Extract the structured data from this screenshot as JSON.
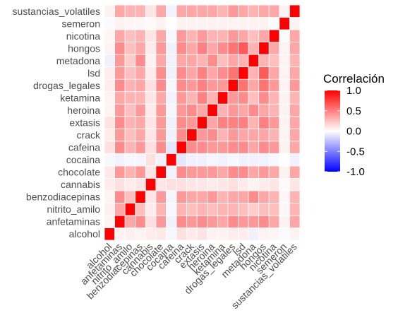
{
  "chart_data": {
    "type": "heatmap",
    "title": "",
    "xlabel": "",
    "ylabel": "",
    "variables": [
      "alcohol",
      "anfetaminas",
      "nitrito_amilo",
      "benzodiacepinas",
      "cannabis",
      "chocolate",
      "cocaina",
      "cafeina",
      "crack",
      "extasis",
      "heroina",
      "ketamina",
      "drogas_legales",
      "lsd",
      "metadona",
      "hongos",
      "nicotina",
      "semeron",
      "sustancias_volatiles"
    ],
    "matrix": [
      [
        1.0,
        0.05,
        0.06,
        0.05,
        0.08,
        0.09,
        -0.03,
        0.12,
        0.08,
        0.11,
        0.05,
        0.05,
        0.07,
        0.07,
        -0.06,
        0.05,
        0.04,
        -0.02,
        0.05
      ],
      [
        0.05,
        1.0,
        0.35,
        0.45,
        0.12,
        0.4,
        -0.05,
        0.45,
        0.4,
        0.45,
        0.4,
        0.35,
        0.45,
        0.4,
        0.4,
        0.45,
        0.35,
        0.05,
        0.35
      ],
      [
        0.06,
        0.35,
        1.0,
        0.25,
        0.08,
        0.3,
        -0.03,
        0.3,
        0.25,
        0.3,
        0.25,
        0.3,
        0.3,
        0.25,
        0.2,
        0.25,
        0.25,
        0.03,
        0.3
      ],
      [
        0.05,
        0.45,
        0.25,
        1.0,
        0.1,
        0.4,
        -0.04,
        0.4,
        0.35,
        0.35,
        0.4,
        0.3,
        0.35,
        0.35,
        0.45,
        0.35,
        0.3,
        0.03,
        0.3
      ],
      [
        0.08,
        0.12,
        0.08,
        0.1,
        1.0,
        0.1,
        0.12,
        0.12,
        0.1,
        0.1,
        0.08,
        0.1,
        0.12,
        0.08,
        0.05,
        0.08,
        0.1,
        0.02,
        0.1
      ],
      [
        0.09,
        0.4,
        0.3,
        0.4,
        0.1,
        1.0,
        -0.05,
        0.45,
        0.4,
        0.4,
        0.4,
        0.35,
        0.45,
        0.45,
        0.35,
        0.4,
        0.35,
        0.05,
        0.35
      ],
      [
        -0.03,
        -0.05,
        -0.03,
        -0.04,
        0.12,
        -0.05,
        1.0,
        -0.1,
        -0.05,
        -0.06,
        -0.04,
        -0.05,
        -0.03,
        -0.05,
        -0.05,
        -0.05,
        -0.03,
        0.0,
        -0.05
      ],
      [
        0.12,
        0.45,
        0.3,
        0.4,
        0.12,
        0.45,
        -0.1,
        1.0,
        0.45,
        0.45,
        0.4,
        0.4,
        0.45,
        0.45,
        0.35,
        0.45,
        0.4,
        0.05,
        0.35
      ],
      [
        0.08,
        0.4,
        0.25,
        0.35,
        0.1,
        0.4,
        -0.05,
        0.45,
        1.0,
        0.4,
        0.45,
        0.3,
        0.4,
        0.35,
        0.35,
        0.35,
        0.3,
        0.05,
        0.35
      ],
      [
        0.11,
        0.45,
        0.3,
        0.35,
        0.1,
        0.4,
        -0.06,
        0.45,
        0.4,
        1.0,
        0.35,
        0.5,
        0.5,
        0.5,
        0.3,
        0.5,
        0.4,
        0.05,
        0.35
      ],
      [
        0.05,
        0.4,
        0.25,
        0.4,
        0.08,
        0.4,
        -0.04,
        0.4,
        0.45,
        0.35,
        1.0,
        0.3,
        0.4,
        0.35,
        0.45,
        0.35,
        0.3,
        0.05,
        0.35
      ],
      [
        0.05,
        0.35,
        0.3,
        0.3,
        0.1,
        0.35,
        -0.05,
        0.4,
        0.3,
        0.5,
        0.3,
        1.0,
        0.4,
        0.45,
        0.25,
        0.45,
        0.3,
        0.05,
        0.3
      ],
      [
        0.07,
        0.45,
        0.3,
        0.35,
        0.12,
        0.45,
        -0.03,
        0.45,
        0.4,
        0.5,
        0.4,
        0.4,
        1.0,
        0.55,
        0.35,
        0.55,
        0.4,
        0.05,
        0.4
      ],
      [
        0.07,
        0.4,
        0.25,
        0.35,
        0.08,
        0.45,
        -0.05,
        0.45,
        0.35,
        0.5,
        0.35,
        0.45,
        0.55,
        1.0,
        0.3,
        0.65,
        0.35,
        0.05,
        0.35
      ],
      [
        -0.06,
        0.4,
        0.2,
        0.45,
        0.05,
        0.35,
        -0.05,
        0.35,
        0.35,
        0.3,
        0.45,
        0.25,
        0.35,
        0.3,
        1.0,
        0.3,
        0.25,
        0.05,
        0.3
      ],
      [
        0.05,
        0.45,
        0.25,
        0.35,
        0.08,
        0.4,
        -0.05,
        0.45,
        0.35,
        0.5,
        0.35,
        0.45,
        0.55,
        0.65,
        0.3,
        1.0,
        0.35,
        0.05,
        0.35
      ],
      [
        0.04,
        0.35,
        0.25,
        0.3,
        0.1,
        0.35,
        -0.03,
        0.4,
        0.3,
        0.4,
        0.3,
        0.3,
        0.4,
        0.35,
        0.25,
        0.35,
        1.0,
        0.02,
        0.35
      ],
      [
        -0.02,
        0.05,
        0.03,
        0.03,
        0.02,
        0.05,
        0.0,
        0.05,
        0.05,
        0.05,
        0.05,
        0.05,
        0.05,
        0.05,
        0.05,
        0.05,
        0.02,
        1.0,
        0.05
      ],
      [
        0.05,
        0.35,
        0.3,
        0.3,
        0.1,
        0.35,
        -0.05,
        0.35,
        0.35,
        0.35,
        0.35,
        0.3,
        0.4,
        0.35,
        0.3,
        0.35,
        0.35,
        0.05,
        1.0
      ]
    ],
    "legend": {
      "title": "Correlación",
      "ticks": [
        "1.0",
        "0.5",
        "0.0",
        "-0.5",
        "-1.0"
      ],
      "tick_values": [
        1.0,
        0.5,
        0.0,
        -0.5,
        -1.0
      ],
      "range": [
        -1.0,
        1.0
      ],
      "low_color": "#0000FF",
      "mid_color": "#FFFFFF",
      "high_color": "#FF0000",
      "placement": "right"
    },
    "grid": true
  }
}
